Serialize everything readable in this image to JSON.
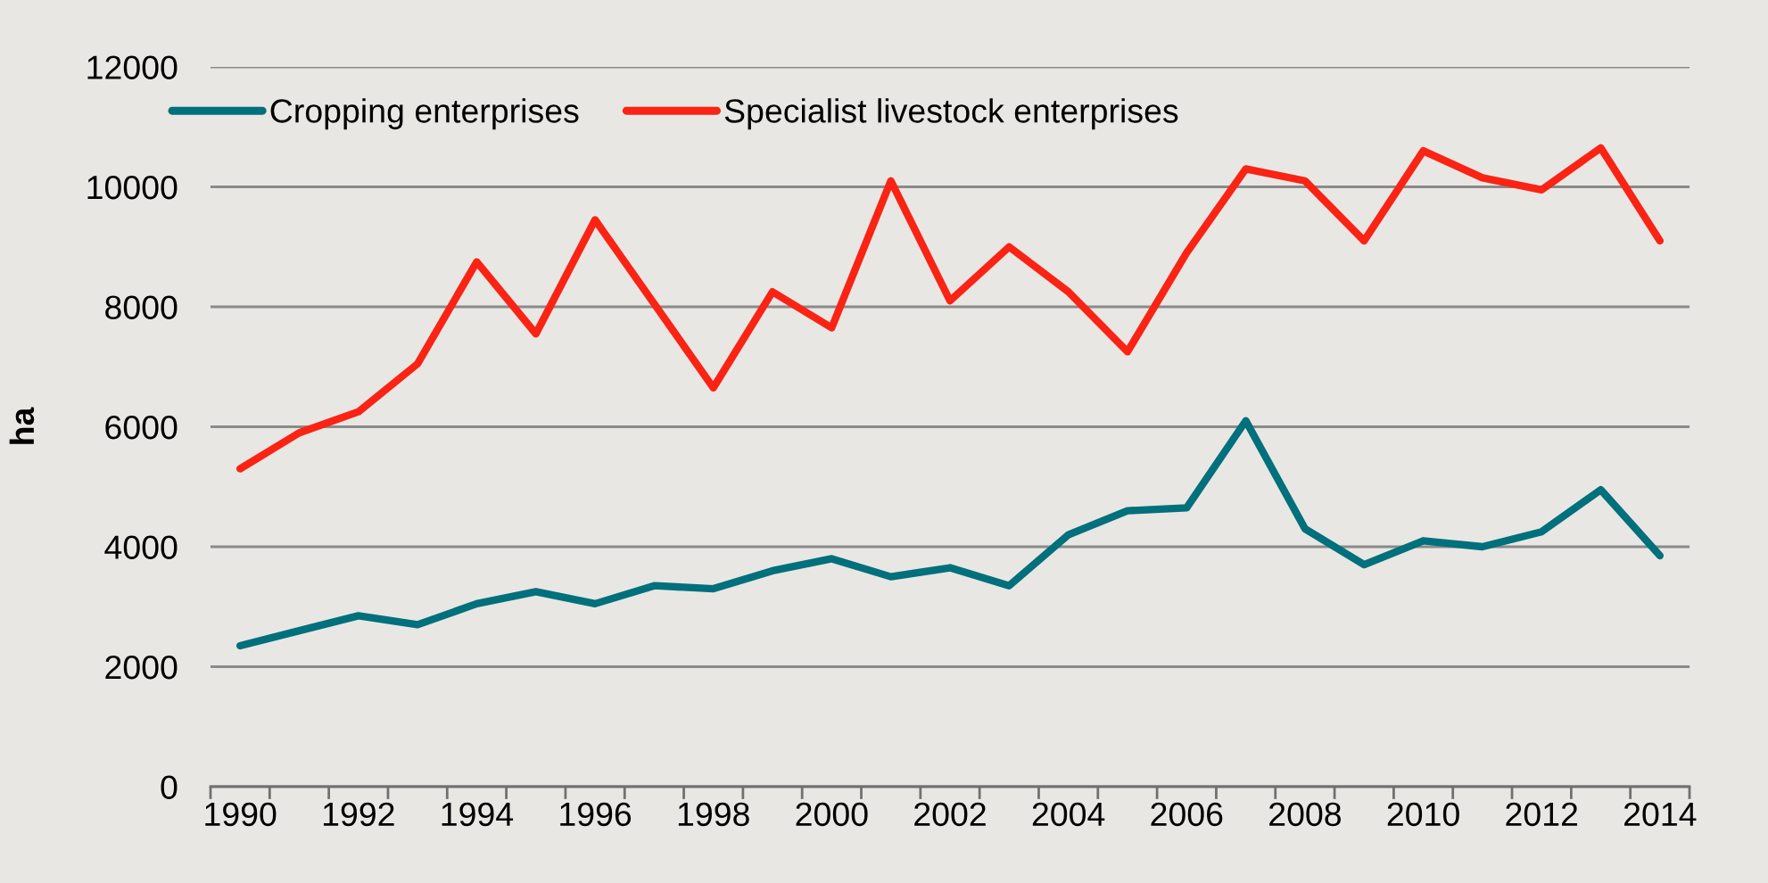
{
  "chart_data": {
    "type": "line",
    "ylabel": "ha",
    "categories": [
      "1990",
      null,
      "1992",
      null,
      "1994",
      null,
      "1996",
      null,
      "1998",
      null,
      "2000",
      null,
      "2002",
      null,
      "2004",
      null,
      "2006",
      null,
      "2008",
      null,
      "2010",
      null,
      "2012",
      null,
      "2014"
    ],
    "series": [
      {
        "name": "Cropping enterprises",
        "color": "#00707c",
        "values": [
          2350,
          2600,
          2850,
          2700,
          3050,
          3250,
          3050,
          3350,
          3300,
          3600,
          3800,
          3500,
          3650,
          3350,
          4200,
          4600,
          4650,
          6100,
          4300,
          3700,
          4100,
          4000,
          4250,
          4950,
          3850
        ]
      },
      {
        "name": "Specialist livestock enterprises",
        "color": "#fa2314",
        "values": [
          5300,
          5900,
          6250,
          7050,
          8750,
          7550,
          9450,
          8050,
          6650,
          8250,
          7650,
          10100,
          8100,
          9000,
          8250,
          7250,
          8900,
          10300,
          10100,
          9100,
          10600,
          10150,
          9950,
          10650,
          9100
        ]
      }
    ],
    "ylim": [
      0,
      12000
    ],
    "yticks": [
      0,
      2000,
      4000,
      6000,
      8000,
      10000,
      12000
    ],
    "grid": "y",
    "legend": "top left"
  }
}
